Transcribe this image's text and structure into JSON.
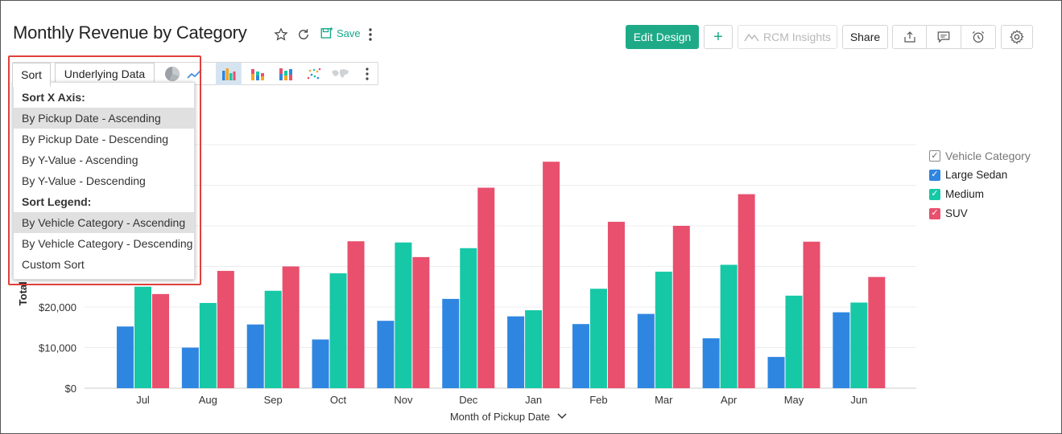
{
  "header": {
    "title": "Monthly Revenue by Category",
    "save_label": "Save",
    "edit_design": "Edit Design",
    "add": "+",
    "rcm_insights": "RCM Insights",
    "share": "Share"
  },
  "toolbar": {
    "tabs": [
      "Sort",
      "Underlying Data"
    ],
    "chart_icons": [
      "pie-chart-icon",
      "line-chart-icon",
      "bar-chart-icon",
      "stacked-bar-icon",
      "stacked-percent-bar-icon",
      "scatter-chart-icon",
      "map-chart-icon",
      "more-icon"
    ],
    "active_icon": "bar-chart-icon"
  },
  "sort_menu": {
    "x_header": "Sort X Axis:",
    "x_options": [
      "By Pickup Date - Ascending",
      "By Pickup Date - Descending",
      "By Y-Value - Ascending",
      "By Y-Value - Descending"
    ],
    "legend_header": "Sort Legend:",
    "legend_options": [
      "By Vehicle Category - Ascending",
      "By Vehicle Category - Descending",
      "Custom Sort"
    ],
    "selected": [
      "By Pickup Date - Ascending",
      "By Vehicle Category - Ascending"
    ]
  },
  "legend": {
    "title": "Vehicle Category",
    "items": [
      "Large Sedan",
      "Medium",
      "SUV"
    ]
  },
  "colors": {
    "accent": "#1eaa87",
    "large_sedan": "#2f86e0",
    "medium": "#16c8a6",
    "suv": "#e8506e",
    "highlight": "#e0403c"
  },
  "chart_data": {
    "type": "bar",
    "categories": [
      "Jul",
      "Aug",
      "Sep",
      "Oct",
      "Nov",
      "Dec",
      "Jan",
      "Feb",
      "Mar",
      "Apr",
      "May",
      "Jun"
    ],
    "series": [
      {
        "name": "Large Sedan",
        "values": [
          15200,
          10000,
          15700,
          12000,
          16600,
          22000,
          17700,
          15800,
          18300,
          12300,
          7700,
          18700
        ]
      },
      {
        "name": "Medium",
        "values": [
          25000,
          21000,
          24000,
          28300,
          35900,
          34500,
          19200,
          24500,
          28700,
          30400,
          22800,
          21100
        ]
      },
      {
        "name": "SUV",
        "values": [
          23200,
          28900,
          30000,
          36200,
          32300,
          49400,
          55800,
          41000,
          40000,
          47800,
          36100,
          27400
        ]
      }
    ],
    "yticks": [
      "$0",
      "$10,000",
      "$20,000"
    ],
    "ylim": [
      0,
      60000
    ],
    "ylabel": "Total To",
    "xlabel": "Month of Pickup Date"
  }
}
